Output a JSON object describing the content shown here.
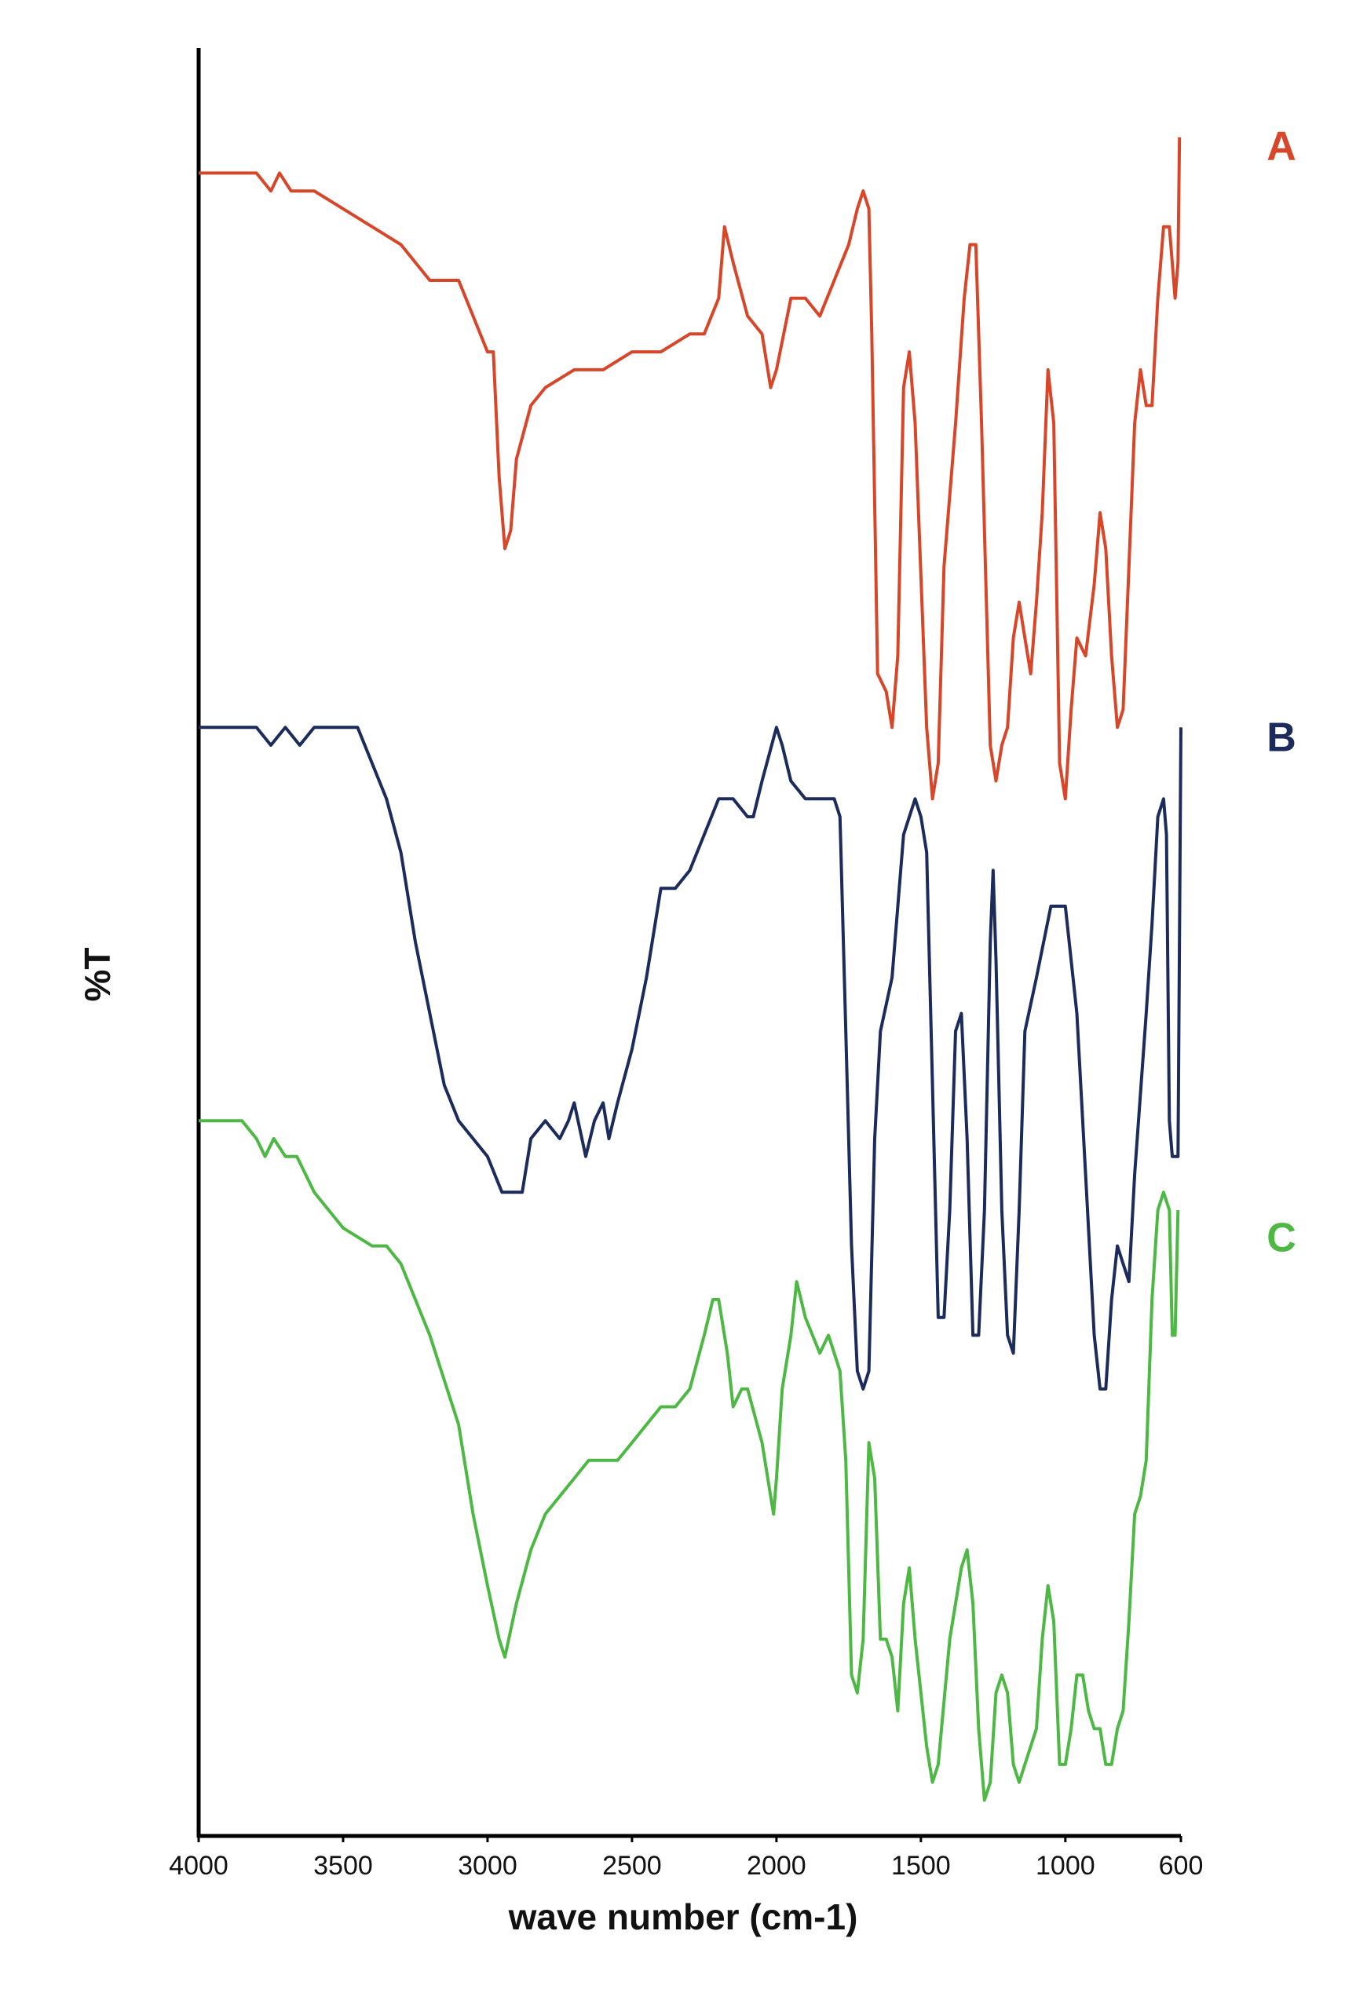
{
  "chart_data": {
    "type": "line",
    "xlabel": "wave number (cm-1)",
    "ylabel": "%T",
    "xlim": [
      4000,
      600
    ],
    "xticks": [
      4000,
      3500,
      3000,
      2500,
      2000,
      1500,
      1000,
      600
    ],
    "ylim": [
      0,
      100
    ],
    "grid": false,
    "series": [
      {
        "name": "A",
        "color": "#d8462a",
        "x": [
          4000,
          3900,
          3850,
          3800,
          3750,
          3720,
          3680,
          3600,
          3500,
          3400,
          3300,
          3200,
          3100,
          3050,
          3000,
          2980,
          2960,
          2940,
          2920,
          2900,
          2850,
          2800,
          2700,
          2600,
          2500,
          2400,
          2300,
          2250,
          2200,
          2180,
          2150,
          2100,
          2050,
          2020,
          2000,
          1950,
          1900,
          1850,
          1800,
          1750,
          1720,
          1700,
          1680,
          1670,
          1650,
          1620,
          1600,
          1580,
          1560,
          1540,
          1520,
          1480,
          1460,
          1440,
          1420,
          1380,
          1350,
          1330,
          1310,
          1290,
          1260,
          1240,
          1220,
          1200,
          1180,
          1160,
          1140,
          1120,
          1100,
          1080,
          1060,
          1040,
          1020,
          1000,
          980,
          960,
          930,
          900,
          880,
          860,
          840,
          820,
          800,
          780,
          760,
          740,
          720,
          700,
          680,
          660,
          640,
          620,
          610,
          605
        ],
        "values": [
          93,
          93,
          93,
          93,
          92,
          93,
          92,
          92,
          91,
          90,
          89,
          87,
          87,
          85,
          83,
          83,
          76,
          72,
          73,
          77,
          80,
          81,
          82,
          82,
          83,
          83,
          84,
          84,
          86,
          90,
          88,
          85,
          84,
          81,
          82,
          86,
          86,
          85,
          87,
          89,
          91,
          92,
          91,
          84,
          65,
          64,
          62,
          66,
          81,
          83,
          79,
          62,
          58,
          60,
          71,
          79,
          86,
          89,
          89,
          79,
          61,
          59,
          61,
          62,
          67,
          69,
          67,
          65,
          69,
          74,
          82,
          79,
          60,
          58,
          63,
          67,
          66,
          70,
          74,
          72,
          66,
          62,
          63,
          71,
          79,
          82,
          80,
          80,
          86,
          90,
          90,
          86,
          88,
          95
        ]
      },
      {
        "name": "B",
        "color": "#1b2b5c",
        "x": [
          4000,
          3900,
          3800,
          3750,
          3700,
          3650,
          3600,
          3500,
          3450,
          3400,
          3350,
          3300,
          3250,
          3200,
          3150,
          3100,
          3050,
          3000,
          2950,
          2920,
          2880,
          2850,
          2800,
          2750,
          2720,
          2700,
          2660,
          2630,
          2600,
          2580,
          2550,
          2500,
          2450,
          2400,
          2350,
          2300,
          2250,
          2200,
          2150,
          2100,
          2080,
          2050,
          2000,
          1980,
          1950,
          1900,
          1850,
          1820,
          1800,
          1780,
          1760,
          1740,
          1720,
          1700,
          1680,
          1660,
          1640,
          1600,
          1560,
          1520,
          1500,
          1480,
          1460,
          1440,
          1420,
          1400,
          1380,
          1360,
          1340,
          1320,
          1300,
          1280,
          1260,
          1250,
          1240,
          1220,
          1200,
          1180,
          1160,
          1140,
          1100,
          1050,
          1000,
          960,
          930,
          900,
          880,
          860,
          840,
          820,
          800,
          780,
          760,
          720,
          700,
          680,
          660,
          650,
          640,
          630,
          610,
          600
        ],
        "values": [
          62,
          62,
          62,
          61,
          62,
          61,
          62,
          62,
          62,
          60,
          58,
          55,
          50,
          46,
          42,
          40,
          39,
          38,
          36,
          36,
          36,
          39,
          40,
          39,
          40,
          41,
          38,
          40,
          41,
          39,
          41,
          44,
          48,
          53,
          53,
          54,
          56,
          58,
          58,
          57,
          57,
          59,
          62,
          61,
          59,
          58,
          58,
          58,
          58,
          57,
          45,
          33,
          26,
          25,
          26,
          39,
          45,
          48,
          56,
          58,
          57,
          55,
          42,
          29,
          29,
          35,
          45,
          46,
          39,
          28,
          28,
          35,
          50,
          54,
          49,
          35,
          28,
          27,
          35,
          45,
          48,
          52,
          52,
          46,
          37,
          28,
          25,
          25,
          30,
          33,
          32,
          31,
          37,
          46,
          51,
          57,
          58,
          56,
          40,
          38,
          38,
          62
        ]
      },
      {
        "name": "C",
        "color": "#4db843",
        "x": [
          4000,
          3900,
          3850,
          3800,
          3770,
          3740,
          3700,
          3660,
          3600,
          3500,
          3400,
          3350,
          3300,
          3200,
          3100,
          3050,
          3000,
          2960,
          2940,
          2900,
          2850,
          2800,
          2750,
          2700,
          2650,
          2600,
          2550,
          2500,
          2450,
          2400,
          2350,
          2300,
          2250,
          2220,
          2200,
          2170,
          2150,
          2120,
          2100,
          2050,
          2020,
          2010,
          2000,
          1980,
          1950,
          1930,
          1900,
          1850,
          1820,
          1800,
          1780,
          1760,
          1740,
          1720,
          1700,
          1680,
          1660,
          1640,
          1620,
          1600,
          1580,
          1560,
          1540,
          1520,
          1480,
          1460,
          1440,
          1400,
          1360,
          1340,
          1320,
          1300,
          1280,
          1260,
          1240,
          1220,
          1200,
          1180,
          1160,
          1140,
          1100,
          1080,
          1060,
          1040,
          1020,
          1000,
          980,
          960,
          940,
          920,
          900,
          880,
          860,
          840,
          820,
          800,
          780,
          760,
          740,
          720,
          700,
          680,
          660,
          640,
          630,
          620,
          610
        ],
        "values": [
          40,
          40,
          40,
          39,
          38,
          39,
          38,
          38,
          36,
          34,
          33,
          33,
          32,
          28,
          23,
          18,
          14,
          11,
          10,
          13,
          16,
          18,
          19,
          20,
          21,
          21,
          21,
          22,
          23,
          24,
          24,
          25,
          28,
          30,
          30,
          27,
          24,
          25,
          25,
          22,
          19,
          18,
          20,
          25,
          28,
          31,
          29,
          27,
          28,
          27,
          26,
          21,
          9,
          8,
          11,
          22,
          20,
          11,
          11,
          10,
          7,
          13,
          15,
          11,
          5,
          3,
          4,
          11,
          15,
          16,
          13,
          6,
          2,
          3,
          8,
          9,
          8,
          4,
          3,
          4,
          6,
          11,
          14,
          12,
          4,
          4,
          6,
          9,
          9,
          7,
          6,
          6,
          4,
          4,
          6,
          7,
          12,
          18,
          19,
          21,
          30,
          35,
          36,
          35,
          28,
          28,
          35
        ]
      }
    ]
  }
}
